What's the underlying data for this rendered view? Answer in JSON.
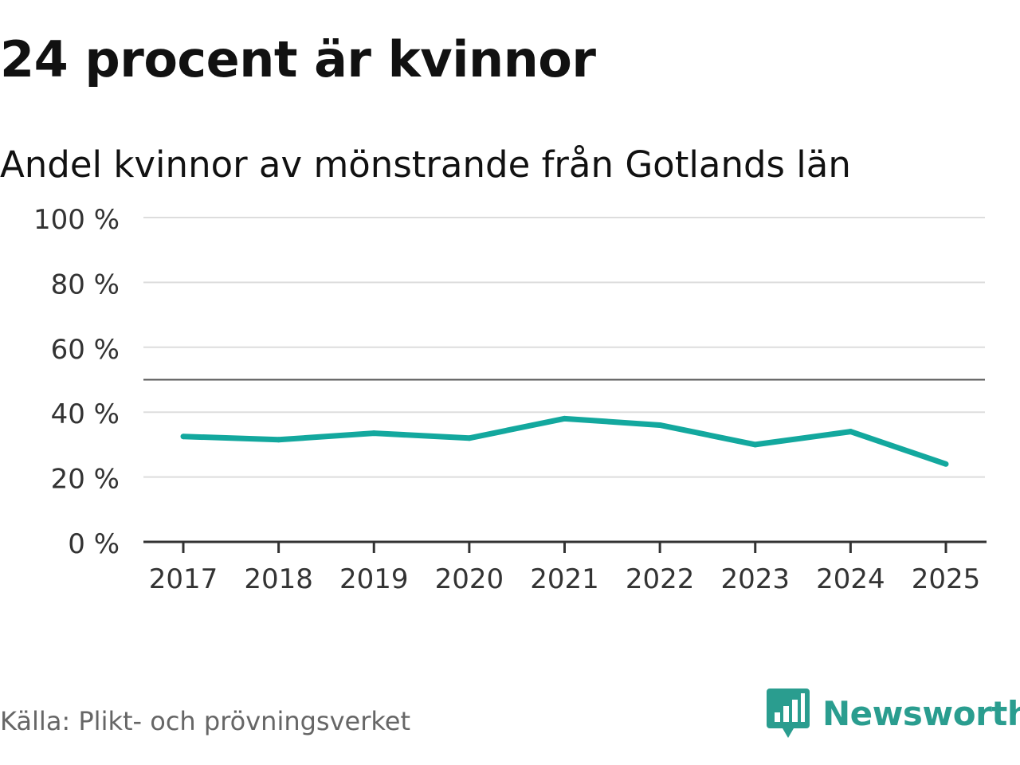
{
  "header": {
    "title": "24 procent är kvinnor"
  },
  "footer": {
    "source": "Källa: Plikt- och prövningsverket",
    "brand": "Newsworthy",
    "brand_icon": "newsworthy-bar-chart-icon"
  },
  "colors": {
    "line": "#13a89e",
    "grid": "#dddddd",
    "reference": "#555555",
    "axis": "#333333",
    "brand": "#2a9d8f"
  },
  "chart_data": {
    "type": "line",
    "title": "Andel kvinnor av mönstrande från Gotlands län",
    "xlabel": "",
    "ylabel": "",
    "categories": [
      "2017",
      "2018",
      "2019",
      "2020",
      "2021",
      "2022",
      "2023",
      "2024",
      "2025"
    ],
    "series": [
      {
        "name": "Andel kvinnor",
        "values": [
          32.5,
          31.5,
          33.5,
          32,
          38,
          36,
          30,
          34,
          24
        ]
      }
    ],
    "ylim": [
      0,
      100
    ],
    "yticks": [
      0,
      20,
      40,
      60,
      80,
      100
    ],
    "ytick_labels": [
      "0 %",
      "20 %",
      "40 %",
      "60 %",
      "80 %",
      "100 %"
    ],
    "reference_line": 50,
    "grid": true,
    "legend": "none"
  }
}
